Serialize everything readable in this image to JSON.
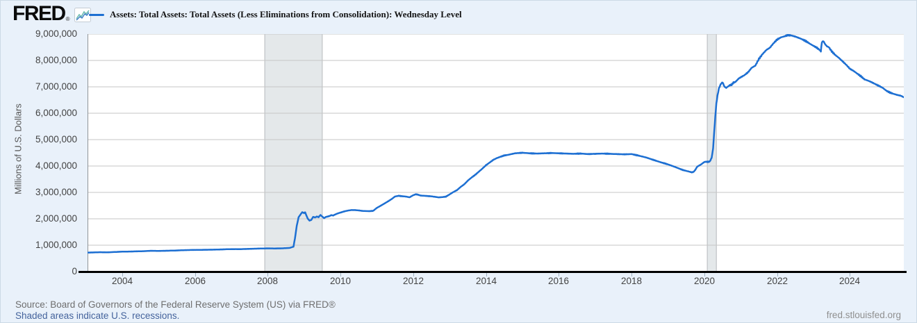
{
  "header": {
    "logo_text": "FRED",
    "registered_mark": "®",
    "legend_series_label": "Assets: Total Assets: Total Assets (Less Eliminations from Consolidation): Wednesday Level"
  },
  "footer": {
    "source": "Source: Board of Governors of the Federal Reserve System (US) via FRED®",
    "recession_note": "Shaded areas indicate U.S. recessions.",
    "site": "fred.stlouisfed.org"
  },
  "colors": {
    "line": "#1d6fd2",
    "background": "#e9f1fa",
    "plot_background": "#ffffff",
    "gridline": "#c6c6c6",
    "plot_left_border": "#8f9498",
    "recession_band": "#e4e8ea",
    "recession_band_edge": "#b6babd",
    "axis": "#000000",
    "tick_text": "#434343",
    "link_text": "#44639c",
    "muted_text": "#6e6e6e"
  },
  "chart_data": {
    "type": "line",
    "title": "Assets: Total Assets: Total Assets (Less Eliminations from Consolidation): Wednesday Level",
    "ylabel": "Millions of U.S. Dollars",
    "xlabel": "",
    "units": "millions of U.S. dollars",
    "frequency": "weekly, Wednesday level",
    "xlim": [
      2003.05,
      2025.48
    ],
    "ylim": [
      0,
      9000000
    ],
    "x_ticks": [
      2004,
      2006,
      2008,
      2010,
      2012,
      2014,
      2016,
      2018,
      2020,
      2022,
      2024
    ],
    "y_ticks": [
      0,
      1000000,
      2000000,
      3000000,
      4000000,
      5000000,
      6000000,
      7000000,
      8000000,
      9000000
    ],
    "y_tick_labels": [
      "0",
      "1,000,000",
      "2,000,000",
      "3,000,000",
      "4,000,000",
      "5,000,000",
      "6,000,000",
      "7,000,000",
      "8,000,000",
      "9,000,000"
    ],
    "grid": "horizontal",
    "legend_position": "top-left",
    "recession_bands": [
      {
        "start_year": 2007.92,
        "end_year": 2009.5
      },
      {
        "start_year": 2020.08,
        "end_year": 2020.33
      }
    ],
    "series": [
      {
        "name": "Assets: Total Assets: Total Assets (Less Eliminations from Consolidation): Wednesday Level",
        "color": "#1d6fd2",
        "points_year_value": [
          [
            2003.05,
            720000
          ],
          [
            2003.2,
            726000
          ],
          [
            2003.4,
            735000
          ],
          [
            2003.6,
            731000
          ],
          [
            2003.8,
            742000
          ],
          [
            2004.0,
            756000
          ],
          [
            2004.2,
            760000
          ],
          [
            2004.4,
            767000
          ],
          [
            2004.6,
            774000
          ],
          [
            2004.8,
            788000
          ],
          [
            2005.0,
            784000
          ],
          [
            2005.25,
            791000
          ],
          [
            2005.5,
            801000
          ],
          [
            2005.75,
            814000
          ],
          [
            2006.0,
            821000
          ],
          [
            2006.25,
            826000
          ],
          [
            2006.5,
            831000
          ],
          [
            2006.75,
            841000
          ],
          [
            2007.0,
            852000
          ],
          [
            2007.25,
            851000
          ],
          [
            2007.5,
            861000
          ],
          [
            2007.75,
            872000
          ],
          [
            2008.0,
            881000
          ],
          [
            2008.2,
            876000
          ],
          [
            2008.4,
            882000
          ],
          [
            2008.6,
            896000
          ],
          [
            2008.71,
            945000
          ],
          [
            2008.75,
            1260000
          ],
          [
            2008.8,
            1740000
          ],
          [
            2008.85,
            2060000
          ],
          [
            2008.9,
            2160000
          ],
          [
            2008.95,
            2250000
          ],
          [
            2009.0,
            2220000
          ],
          [
            2009.03,
            2250000
          ],
          [
            2009.06,
            2140000
          ],
          [
            2009.1,
            2010000
          ],
          [
            2009.15,
            1930000
          ],
          [
            2009.2,
            1960000
          ],
          [
            2009.25,
            2075000
          ],
          [
            2009.3,
            2050000
          ],
          [
            2009.35,
            2085000
          ],
          [
            2009.4,
            2065000
          ],
          [
            2009.45,
            2145000
          ],
          [
            2009.5,
            2085000
          ],
          [
            2009.55,
            2025000
          ],
          [
            2009.6,
            2072000
          ],
          [
            2009.65,
            2085000
          ],
          [
            2009.7,
            2105000
          ],
          [
            2009.75,
            2140000
          ],
          [
            2009.8,
            2125000
          ],
          [
            2009.85,
            2160000
          ],
          [
            2009.9,
            2190000
          ],
          [
            2009.95,
            2215000
          ],
          [
            2010.0,
            2235000
          ],
          [
            2010.1,
            2280000
          ],
          [
            2010.2,
            2310000
          ],
          [
            2010.3,
            2332000
          ],
          [
            2010.4,
            2330000
          ],
          [
            2010.5,
            2318000
          ],
          [
            2010.6,
            2300000
          ],
          [
            2010.7,
            2292000
          ],
          [
            2010.8,
            2290000
          ],
          [
            2010.9,
            2302000
          ],
          [
            2011.0,
            2415000
          ],
          [
            2011.1,
            2490000
          ],
          [
            2011.2,
            2572000
          ],
          [
            2011.3,
            2655000
          ],
          [
            2011.4,
            2742000
          ],
          [
            2011.5,
            2845000
          ],
          [
            2011.6,
            2872000
          ],
          [
            2011.7,
            2855000
          ],
          [
            2011.8,
            2842000
          ],
          [
            2011.9,
            2815000
          ],
          [
            2012.0,
            2895000
          ],
          [
            2012.07,
            2928000
          ],
          [
            2012.12,
            2918000
          ],
          [
            2012.2,
            2882000
          ],
          [
            2012.3,
            2872000
          ],
          [
            2012.4,
            2862000
          ],
          [
            2012.5,
            2852000
          ],
          [
            2012.6,
            2832000
          ],
          [
            2012.7,
            2812000
          ],
          [
            2012.8,
            2822000
          ],
          [
            2012.9,
            2842000
          ],
          [
            2013.0,
            2925000
          ],
          [
            2013.1,
            3012000
          ],
          [
            2013.2,
            3085000
          ],
          [
            2013.3,
            3205000
          ],
          [
            2013.4,
            3305000
          ],
          [
            2013.5,
            3445000
          ],
          [
            2013.6,
            3562000
          ],
          [
            2013.7,
            3662000
          ],
          [
            2013.8,
            3782000
          ],
          [
            2013.9,
            3902000
          ],
          [
            2014.0,
            4032000
          ],
          [
            2014.1,
            4132000
          ],
          [
            2014.2,
            4232000
          ],
          [
            2014.3,
            4302000
          ],
          [
            2014.4,
            4352000
          ],
          [
            2014.5,
            4400000
          ],
          [
            2014.6,
            4422000
          ],
          [
            2014.7,
            4452000
          ],
          [
            2014.8,
            4482000
          ],
          [
            2014.9,
            4492000
          ],
          [
            2015.0,
            4502000
          ],
          [
            2015.2,
            4482000
          ],
          [
            2015.4,
            4472000
          ],
          [
            2015.6,
            4482000
          ],
          [
            2015.8,
            4492000
          ],
          [
            2016.0,
            4482000
          ],
          [
            2016.2,
            4472000
          ],
          [
            2016.4,
            4462000
          ],
          [
            2016.6,
            4472000
          ],
          [
            2016.8,
            4452000
          ],
          [
            2017.0,
            4462000
          ],
          [
            2017.2,
            4472000
          ],
          [
            2017.4,
            4462000
          ],
          [
            2017.6,
            4452000
          ],
          [
            2017.8,
            4442000
          ],
          [
            2018.0,
            4452000
          ],
          [
            2018.2,
            4392000
          ],
          [
            2018.4,
            4322000
          ],
          [
            2018.6,
            4232000
          ],
          [
            2018.8,
            4142000
          ],
          [
            2019.0,
            4062000
          ],
          [
            2019.2,
            3962000
          ],
          [
            2019.4,
            3852000
          ],
          [
            2019.6,
            3782000
          ],
          [
            2019.65,
            3762000
          ],
          [
            2019.7,
            3772000
          ],
          [
            2019.75,
            3852000
          ],
          [
            2019.8,
            3972000
          ],
          [
            2019.9,
            4052000
          ],
          [
            2019.95,
            4102000
          ],
          [
            2020.0,
            4152000
          ],
          [
            2020.05,
            4162000
          ],
          [
            2020.1,
            4158000
          ],
          [
            2020.15,
            4172000
          ],
          [
            2020.2,
            4312000
          ],
          [
            2020.24,
            4672000
          ],
          [
            2020.27,
            5302000
          ],
          [
            2020.3,
            5862000
          ],
          [
            2020.33,
            6372000
          ],
          [
            2020.36,
            6662000
          ],
          [
            2020.4,
            6942000
          ],
          [
            2020.45,
            7102000
          ],
          [
            2020.5,
            7172000
          ],
          [
            2020.55,
            7012000
          ],
          [
            2020.6,
            6962000
          ],
          [
            2020.65,
            7012000
          ],
          [
            2020.7,
            7062000
          ],
          [
            2020.75,
            7082000
          ],
          [
            2020.8,
            7162000
          ],
          [
            2020.85,
            7182000
          ],
          [
            2020.9,
            7252000
          ],
          [
            2020.95,
            7322000
          ],
          [
            2021.0,
            7362000
          ],
          [
            2021.1,
            7442000
          ],
          [
            2021.2,
            7552000
          ],
          [
            2021.3,
            7722000
          ],
          [
            2021.4,
            7802000
          ],
          [
            2021.5,
            8062000
          ],
          [
            2021.6,
            8242000
          ],
          [
            2021.7,
            8392000
          ],
          [
            2021.8,
            8482000
          ],
          [
            2021.9,
            8652000
          ],
          [
            2022.0,
            8792000
          ],
          [
            2022.1,
            8872000
          ],
          [
            2022.2,
            8912000
          ],
          [
            2022.3,
            8962000
          ],
          [
            2022.4,
            8942000
          ],
          [
            2022.5,
            8902000
          ],
          [
            2022.6,
            8852000
          ],
          [
            2022.7,
            8792000
          ],
          [
            2022.8,
            8722000
          ],
          [
            2022.9,
            8632000
          ],
          [
            2023.0,
            8552000
          ],
          [
            2023.1,
            8472000
          ],
          [
            2023.17,
            8392000
          ],
          [
            2023.2,
            8342000
          ],
          [
            2023.23,
            8692000
          ],
          [
            2023.27,
            8732000
          ],
          [
            2023.32,
            8612000
          ],
          [
            2023.37,
            8532000
          ],
          [
            2023.42,
            8502000
          ],
          [
            2023.5,
            8342000
          ],
          [
            2023.6,
            8202000
          ],
          [
            2023.7,
            8092000
          ],
          [
            2023.8,
            7962000
          ],
          [
            2023.9,
            7832000
          ],
          [
            2024.0,
            7682000
          ],
          [
            2024.1,
            7602000
          ],
          [
            2024.2,
            7502000
          ],
          [
            2024.3,
            7402000
          ],
          [
            2024.4,
            7282000
          ],
          [
            2024.5,
            7232000
          ],
          [
            2024.6,
            7172000
          ],
          [
            2024.7,
            7102000
          ],
          [
            2024.8,
            7032000
          ],
          [
            2024.9,
            6962000
          ],
          [
            2025.0,
            6852000
          ],
          [
            2025.1,
            6782000
          ],
          [
            2025.2,
            6732000
          ],
          [
            2025.3,
            6692000
          ],
          [
            2025.4,
            6662000
          ],
          [
            2025.48,
            6602000
          ]
        ]
      }
    ]
  }
}
